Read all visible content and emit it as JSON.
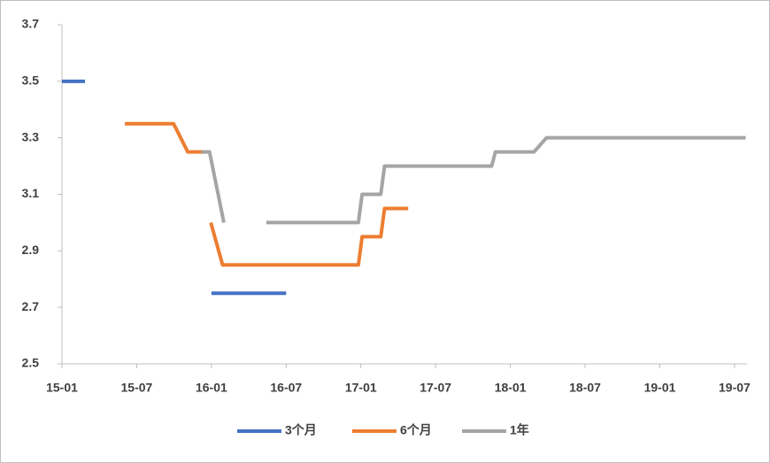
{
  "chart_data": {
    "type": "line",
    "xlim": [
      0,
      55
    ],
    "xticks": [
      {
        "value": 0,
        "label": "15-01"
      },
      {
        "value": 6,
        "label": "15-07"
      },
      {
        "value": 12,
        "label": "16-01"
      },
      {
        "value": 18,
        "label": "16-07"
      },
      {
        "value": 24,
        "label": "17-01"
      },
      {
        "value": 30,
        "label": "17-07"
      },
      {
        "value": 36,
        "label": "18-01"
      },
      {
        "value": 42,
        "label": "18-07"
      },
      {
        "value": 48,
        "label": "19-01"
      },
      {
        "value": 54,
        "label": "19-07"
      }
    ],
    "ylim": [
      2.5,
      3.7
    ],
    "yticks": [
      2.5,
      2.7,
      2.9,
      3.1,
      3.3,
      3.5,
      3.7
    ],
    "legend": "bottom",
    "series": [
      {
        "name": "3个月",
        "color": "#4472c4",
        "x": [
          0,
          1.85,
          5,
          12,
          18
        ],
        "values": [
          3.5,
          3.5,
          null,
          2.75,
          2.75
        ]
      },
      {
        "name": "6个月",
        "color": "#ed7d31",
        "x": [
          5.05,
          8.96,
          10.1,
          11.8,
          11.9,
          11.95,
          12.9,
          23.8,
          24.1,
          25.6,
          25.9,
          27.8
        ],
        "values": [
          3.35,
          3.35,
          3.25,
          3.25,
          null,
          3.0,
          2.85,
          2.85,
          2.95,
          2.95,
          3.05,
          3.05
        ]
      },
      {
        "name": "1年",
        "color": "#a5a5a5",
        "x": [
          11.2,
          11.85,
          13,
          15,
          16.4,
          23.8,
          24.1,
          25.6,
          25.9,
          34.5,
          34.8,
          37.9,
          38.9,
          54.9
        ],
        "values": [
          3.25,
          3.25,
          3.0,
          null,
          3.0,
          3.0,
          3.1,
          3.1,
          3.2,
          3.2,
          3.25,
          3.25,
          3.3,
          3.3
        ]
      }
    ]
  }
}
